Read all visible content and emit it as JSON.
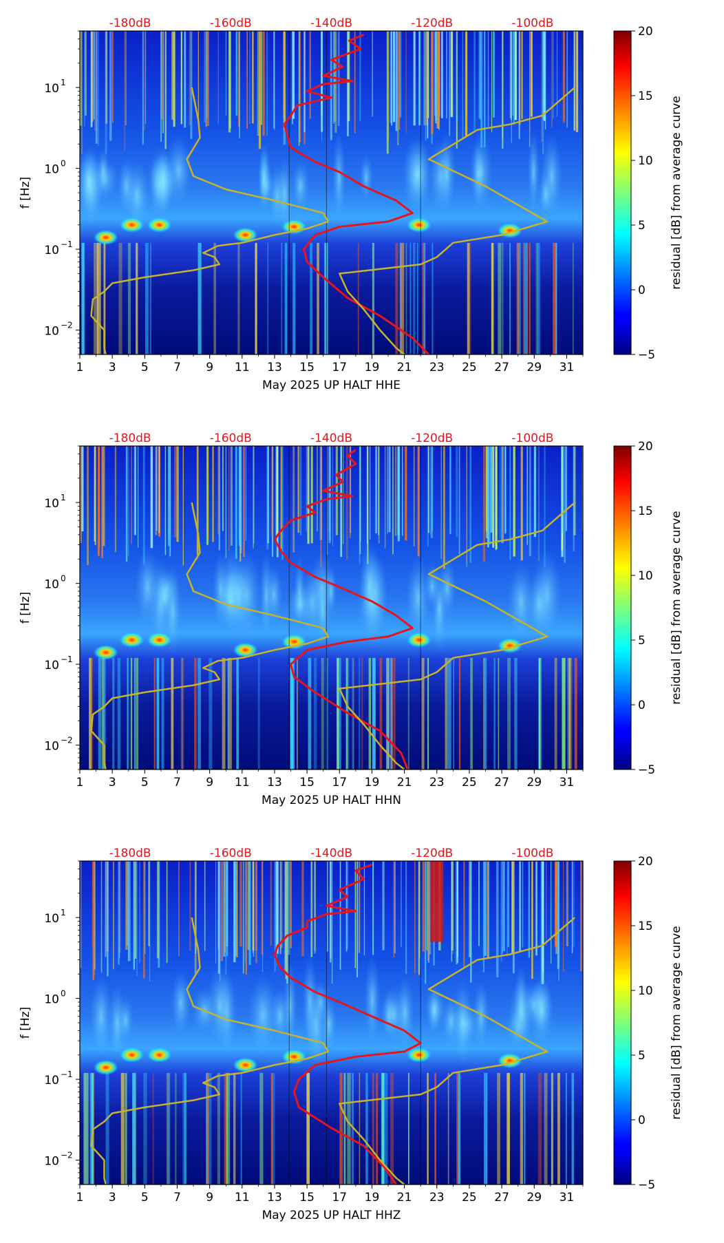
{
  "chart_data": [
    {
      "type": "heatmap",
      "channel": "HHE",
      "xlabel": "May 2025 UP HALT  HHE",
      "ylabel": "f [Hz]",
      "x_ticks": [
        "1",
        "3",
        "5",
        "7",
        "9",
        "11",
        "13",
        "15",
        "17",
        "19",
        "21",
        "23",
        "25",
        "27",
        "29",
        "31"
      ],
      "xlim": [
        1,
        32
      ],
      "y_ticks": [
        {
          "value": 0.01,
          "base": "10",
          "exp": "−2"
        },
        {
          "value": 0.1,
          "base": "10",
          "exp": "−1"
        },
        {
          "value": 1,
          "base": "10",
          "exp": "0"
        },
        {
          "value": 10,
          "base": "10",
          "exp": "1"
        }
      ],
      "ylim": [
        0.005,
        50
      ],
      "top_labels": [
        "-180dB",
        "-160dB",
        "-140dB",
        "-120dB",
        "-100dB"
      ],
      "top_label_days": [
        4.1,
        10.3,
        16.5,
        22.7,
        28.9
      ],
      "colorbar": {
        "label": "residual [dB] from average curve",
        "ticks": [
          "20",
          "15",
          "10",
          "5",
          "0",
          "−5"
        ],
        "range": [
          -5,
          20
        ]
      },
      "series": [
        {
          "name": "average PSD curve",
          "color": "#e8141c",
          "points": [
            [
              18.5,
              45
            ],
            [
              17.6,
              38
            ],
            [
              18.3,
              30
            ],
            [
              16.5,
              22
            ],
            [
              17.2,
              18
            ],
            [
              16.0,
              14
            ],
            [
              17.8,
              12
            ],
            [
              16.0,
              11
            ],
            [
              15.0,
              9
            ],
            [
              16.5,
              7.5
            ],
            [
              14.4,
              6
            ],
            [
              14.0,
              4.5
            ],
            [
              13.6,
              3.5
            ],
            [
              13.8,
              2.5
            ],
            [
              14.0,
              1.8
            ],
            [
              15.5,
              1.2
            ],
            [
              17.0,
              0.9
            ],
            [
              18.5,
              0.6
            ],
            [
              20.5,
              0.4
            ],
            [
              21.5,
              0.28
            ],
            [
              20.0,
              0.22
            ],
            [
              17.0,
              0.19
            ],
            [
              15.5,
              0.15
            ],
            [
              14.8,
              0.1
            ],
            [
              15.0,
              0.07
            ],
            [
              16.0,
              0.045
            ],
            [
              17.5,
              0.025
            ],
            [
              19.5,
              0.015
            ],
            [
              21.5,
              0.008
            ],
            [
              22.5,
              0.005
            ]
          ]
        },
        {
          "name": "reference model curve",
          "color": "#c8b42a",
          "points": [
            [
              7.9,
              10
            ],
            [
              8.3,
              4
            ],
            [
              8.4,
              2.4
            ],
            [
              7.6,
              1.3
            ],
            [
              8.0,
              0.8
            ],
            [
              10.0,
              0.55
            ],
            [
              13.0,
              0.4
            ],
            [
              16.0,
              0.28
            ],
            [
              16.3,
              0.22
            ],
            [
              15.0,
              0.18
            ],
            [
              13.0,
              0.15
            ],
            [
              11.0,
              0.12
            ],
            [
              9.5,
              0.11
            ],
            [
              8.6,
              0.09
            ],
            [
              9.3,
              0.08
            ],
            [
              9.6,
              0.065
            ],
            [
              8.0,
              0.055
            ],
            [
              5.0,
              0.045
            ],
            [
              3.0,
              0.038
            ],
            [
              2.5,
              0.03
            ],
            [
              1.8,
              0.024
            ],
            [
              1.7,
              0.015
            ],
            [
              2.5,
              0.01
            ],
            [
              2.5,
              0.006
            ],
            [
              2.6,
              0.005
            ]
          ]
        },
        {
          "name": "reference model curve (right)",
          "color": "#c8b42a",
          "points": [
            [
              31.5,
              10
            ],
            [
              29.5,
              4.5
            ],
            [
              27.5,
              3.5
            ],
            [
              25.5,
              3
            ],
            [
              22.5,
              1.3
            ],
            [
              26.0,
              0.6
            ],
            [
              29.8,
              0.22
            ],
            [
              27.0,
              0.15
            ],
            [
              24.0,
              0.12
            ],
            [
              23.0,
              0.08
            ],
            [
              22.0,
              0.065
            ],
            [
              17.0,
              0.05
            ],
            [
              17.5,
              0.03
            ],
            [
              18.5,
              0.018
            ],
            [
              19.5,
              0.01
            ],
            [
              20.5,
              0.006
            ],
            [
              21.0,
              0.005
            ]
          ]
        }
      ]
    },
    {
      "type": "heatmap",
      "channel": "HHN",
      "xlabel": "May 2025 UP HALT  HHN",
      "ylabel": "f [Hz]",
      "x_ticks": [
        "1",
        "3",
        "5",
        "7",
        "9",
        "11",
        "13",
        "15",
        "17",
        "19",
        "21",
        "23",
        "25",
        "27",
        "29",
        "31"
      ],
      "xlim": [
        1,
        32
      ],
      "y_ticks": [
        {
          "value": 0.01,
          "base": "10",
          "exp": "−2"
        },
        {
          "value": 0.1,
          "base": "10",
          "exp": "−1"
        },
        {
          "value": 1,
          "base": "10",
          "exp": "0"
        },
        {
          "value": 10,
          "base": "10",
          "exp": "1"
        }
      ],
      "ylim": [
        0.005,
        50
      ],
      "top_labels": [
        "-180dB",
        "-160dB",
        "-140dB",
        "-120dB",
        "-100dB"
      ],
      "top_label_days": [
        4.1,
        10.3,
        16.5,
        22.7,
        28.9
      ],
      "colorbar": {
        "label": "residual [dB] from average curve",
        "ticks": [
          "20",
          "15",
          "10",
          "5",
          "0",
          "−5"
        ],
        "range": [
          -5,
          20
        ]
      },
      "series": [
        {
          "name": "average PSD curve",
          "color": "#e8141c",
          "points": [
            [
              18.0,
              45
            ],
            [
              17.5,
              38
            ],
            [
              18.0,
              30
            ],
            [
              16.8,
              22
            ],
            [
              17.2,
              18
            ],
            [
              16.0,
              14
            ],
            [
              17.8,
              12
            ],
            [
              16.2,
              11
            ],
            [
              15.0,
              9
            ],
            [
              15.5,
              7.5
            ],
            [
              14.0,
              6
            ],
            [
              13.4,
              4.5
            ],
            [
              13.0,
              3.5
            ],
            [
              13.4,
              2.5
            ],
            [
              14.0,
              1.8
            ],
            [
              15.5,
              1.2
            ],
            [
              17.0,
              0.9
            ],
            [
              19.0,
              0.6
            ],
            [
              20.5,
              0.4
            ],
            [
              21.5,
              0.28
            ],
            [
              20.0,
              0.22
            ],
            [
              17.5,
              0.19
            ],
            [
              15.0,
              0.15
            ],
            [
              14.0,
              0.1
            ],
            [
              14.2,
              0.07
            ],
            [
              15.5,
              0.045
            ],
            [
              17.5,
              0.025
            ],
            [
              19.5,
              0.015
            ],
            [
              20.8,
              0.008
            ],
            [
              21.2,
              0.005
            ]
          ]
        },
        {
          "name": "reference model curve",
          "color": "#c8b42a",
          "points": [
            [
              7.9,
              10
            ],
            [
              8.3,
              4
            ],
            [
              8.4,
              2.4
            ],
            [
              7.6,
              1.3
            ],
            [
              8.0,
              0.8
            ],
            [
              10.0,
              0.55
            ],
            [
              13.0,
              0.4
            ],
            [
              16.0,
              0.28
            ],
            [
              16.3,
              0.22
            ],
            [
              15.0,
              0.18
            ],
            [
              13.0,
              0.15
            ],
            [
              11.0,
              0.12
            ],
            [
              9.5,
              0.11
            ],
            [
              8.6,
              0.09
            ],
            [
              9.3,
              0.08
            ],
            [
              9.6,
              0.065
            ],
            [
              8.0,
              0.055
            ],
            [
              5.0,
              0.045
            ],
            [
              3.0,
              0.038
            ],
            [
              2.5,
              0.03
            ],
            [
              1.8,
              0.024
            ],
            [
              1.7,
              0.015
            ],
            [
              2.5,
              0.01
            ],
            [
              2.5,
              0.006
            ],
            [
              2.6,
              0.005
            ]
          ]
        },
        {
          "name": "reference model curve (right)",
          "color": "#c8b42a",
          "points": [
            [
              31.5,
              10
            ],
            [
              29.5,
              4.5
            ],
            [
              27.5,
              3.5
            ],
            [
              25.5,
              3
            ],
            [
              22.5,
              1.3
            ],
            [
              26.0,
              0.6
            ],
            [
              29.8,
              0.22
            ],
            [
              27.0,
              0.15
            ],
            [
              24.0,
              0.12
            ],
            [
              23.0,
              0.08
            ],
            [
              22.0,
              0.065
            ],
            [
              17.0,
              0.05
            ],
            [
              17.5,
              0.03
            ],
            [
              18.5,
              0.018
            ],
            [
              19.5,
              0.01
            ],
            [
              20.5,
              0.006
            ],
            [
              21.0,
              0.005
            ]
          ]
        }
      ]
    },
    {
      "type": "heatmap",
      "channel": "HHZ",
      "xlabel": "May 2025 UP HALT  HHZ",
      "ylabel": "f [Hz]",
      "x_ticks": [
        "1",
        "3",
        "5",
        "7",
        "9",
        "11",
        "13",
        "15",
        "17",
        "19",
        "21",
        "23",
        "25",
        "27",
        "29",
        "31"
      ],
      "xlim": [
        1,
        32
      ],
      "y_ticks": [
        {
          "value": 0.01,
          "base": "10",
          "exp": "−2"
        },
        {
          "value": 0.1,
          "base": "10",
          "exp": "−1"
        },
        {
          "value": 1,
          "base": "10",
          "exp": "0"
        },
        {
          "value": 10,
          "base": "10",
          "exp": "1"
        }
      ],
      "ylim": [
        0.005,
        50
      ],
      "top_labels": [
        "-180dB",
        "-160dB",
        "-140dB",
        "-120dB",
        "-100dB"
      ],
      "top_label_days": [
        4.1,
        10.3,
        16.5,
        22.7,
        28.9
      ],
      "colorbar": {
        "label": "residual [dB] from average curve",
        "ticks": [
          "20",
          "15",
          "10",
          "5",
          "0",
          "−5"
        ],
        "range": [
          -5,
          20
        ]
      },
      "series": [
        {
          "name": "average PSD curve",
          "color": "#e8141c",
          "points": [
            [
              19.0,
              45
            ],
            [
              18.0,
              38
            ],
            [
              18.5,
              30
            ],
            [
              17.0,
              22
            ],
            [
              17.5,
              18
            ],
            [
              16.2,
              14
            ],
            [
              18.0,
              12
            ],
            [
              16.2,
              11
            ],
            [
              15.0,
              9
            ],
            [
              15.0,
              7.5
            ],
            [
              13.8,
              6
            ],
            [
              13.2,
              4.5
            ],
            [
              13.0,
              3.5
            ],
            [
              13.3,
              2.5
            ],
            [
              14.0,
              1.8
            ],
            [
              15.5,
              1.2
            ],
            [
              17.0,
              0.9
            ],
            [
              19.0,
              0.6
            ],
            [
              21.0,
              0.4
            ],
            [
              22.0,
              0.28
            ],
            [
              21.0,
              0.22
            ],
            [
              18.0,
              0.19
            ],
            [
              15.5,
              0.15
            ],
            [
              14.5,
              0.1
            ],
            [
              14.2,
              0.07
            ],
            [
              14.5,
              0.045
            ],
            [
              16.5,
              0.025
            ],
            [
              18.5,
              0.015
            ],
            [
              19.8,
              0.008
            ],
            [
              20.5,
              0.005
            ]
          ]
        },
        {
          "name": "reference model curve",
          "color": "#c8b42a",
          "points": [
            [
              7.9,
              10
            ],
            [
              8.3,
              4
            ],
            [
              8.4,
              2.4
            ],
            [
              7.6,
              1.3
            ],
            [
              8.0,
              0.8
            ],
            [
              10.0,
              0.55
            ],
            [
              13.0,
              0.4
            ],
            [
              16.0,
              0.28
            ],
            [
              16.3,
              0.22
            ],
            [
              15.0,
              0.18
            ],
            [
              13.0,
              0.15
            ],
            [
              11.0,
              0.12
            ],
            [
              9.5,
              0.11
            ],
            [
              8.6,
              0.09
            ],
            [
              9.3,
              0.08
            ],
            [
              9.6,
              0.065
            ],
            [
              8.0,
              0.055
            ],
            [
              5.0,
              0.045
            ],
            [
              3.0,
              0.038
            ],
            [
              2.5,
              0.03
            ],
            [
              1.8,
              0.024
            ],
            [
              1.7,
              0.015
            ],
            [
              2.5,
              0.01
            ],
            [
              2.5,
              0.006
            ],
            [
              2.6,
              0.005
            ]
          ]
        },
        {
          "name": "reference model curve (right)",
          "color": "#c8b42a",
          "points": [
            [
              31.5,
              10
            ],
            [
              29.5,
              4.5
            ],
            [
              27.5,
              3.5
            ],
            [
              25.5,
              3
            ],
            [
              22.5,
              1.3
            ],
            [
              26.0,
              0.6
            ],
            [
              29.8,
              0.22
            ],
            [
              27.0,
              0.15
            ],
            [
              24.0,
              0.12
            ],
            [
              23.0,
              0.08
            ],
            [
              22.0,
              0.065
            ],
            [
              17.0,
              0.05
            ],
            [
              17.5,
              0.03
            ],
            [
              18.5,
              0.018
            ],
            [
              19.5,
              0.01
            ],
            [
              20.5,
              0.006
            ],
            [
              21.0,
              0.005
            ]
          ]
        }
      ]
    }
  ]
}
